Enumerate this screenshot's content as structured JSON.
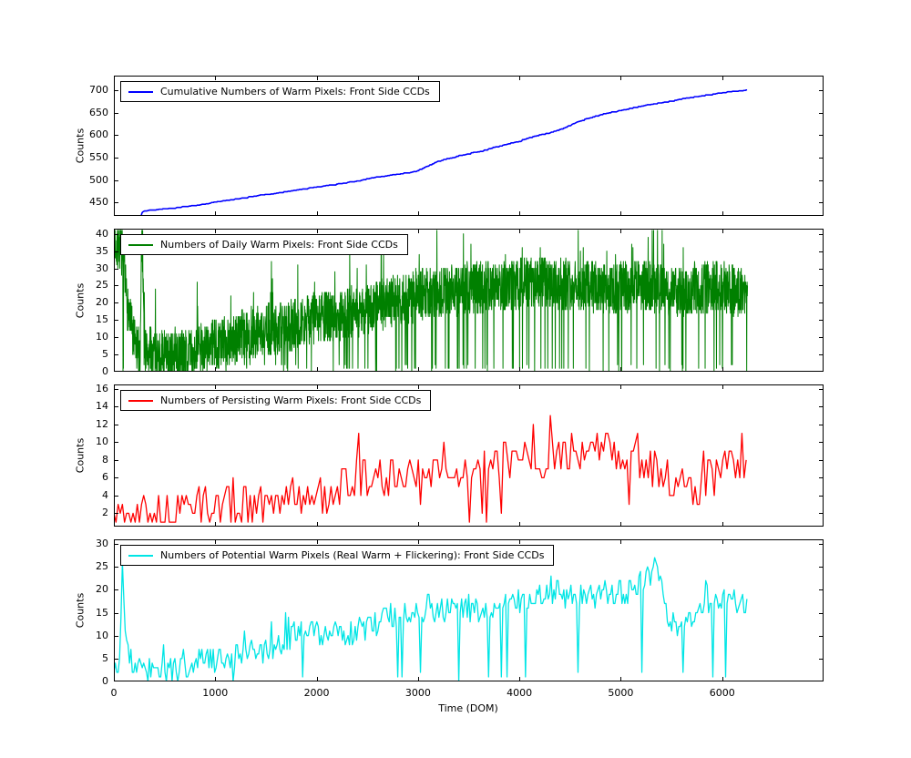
{
  "figure": {
    "background": "#ffffff",
    "xlabel": "Time (DOM)",
    "xlim": [
      0,
      7000
    ],
    "xticks": [
      0,
      1000,
      2000,
      3000,
      4000,
      5000,
      6000
    ]
  },
  "chart_data": [
    {
      "type": "line",
      "legend": "Cumulative Numbers of Warm Pixels: Front Side CCDs",
      "color": "#0000ff",
      "ylabel": "Counts",
      "ylim": [
        420,
        733
      ],
      "yticks": [
        450,
        500,
        550,
        600,
        650,
        700
      ],
      "xlim": [
        0,
        7000
      ],
      "x_range": [
        270,
        6250
      ],
      "x_step": 8,
      "linewidth": 1.6,
      "seed": 42,
      "noise_amp": 1.3,
      "dip_prob": 0,
      "spike_prob": 0,
      "monotonic": true,
      "clip": [
        421,
        701
      ],
      "trend": [
        [
          270,
          421
        ],
        [
          285,
          430
        ],
        [
          400,
          433
        ],
        [
          600,
          437
        ],
        [
          800,
          443
        ],
        [
          1000,
          450
        ],
        [
          1200,
          457
        ],
        [
          1400,
          464
        ],
        [
          1600,
          470
        ],
        [
          1800,
          477
        ],
        [
          2000,
          484
        ],
        [
          2200,
          490
        ],
        [
          2400,
          497
        ],
        [
          2600,
          506
        ],
        [
          2800,
          512
        ],
        [
          3000,
          520
        ],
        [
          3100,
          531
        ],
        [
          3200,
          542
        ],
        [
          3400,
          553
        ],
        [
          3600,
          563
        ],
        [
          3800,
          575
        ],
        [
          4000,
          586
        ],
        [
          4100,
          594
        ],
        [
          4200,
          600
        ],
        [
          4300,
          605
        ],
        [
          4400,
          612
        ],
        [
          4500,
          621
        ],
        [
          4600,
          632
        ],
        [
          4700,
          638
        ],
        [
          4800,
          645
        ],
        [
          5000,
          655
        ],
        [
          5200,
          664
        ],
        [
          5400,
          672
        ],
        [
          5600,
          680
        ],
        [
          5800,
          687
        ],
        [
          6000,
          694
        ],
        [
          6100,
          697
        ],
        [
          6250,
          700
        ]
      ]
    },
    {
      "type": "line",
      "legend": "Numbers of Daily Warm Pixels: Front Side CCDs",
      "color": "#008000",
      "ylabel": "Counts",
      "ylim": [
        0,
        41.5
      ],
      "yticks": [
        0,
        5,
        10,
        15,
        20,
        25,
        30,
        35,
        40
      ],
      "xlim": [
        0,
        7000
      ],
      "x_range": [
        0,
        6250
      ],
      "x_step": 2,
      "linewidth": 1,
      "seed": 7,
      "noise_amp": 7.5,
      "dip_prob": 0.035,
      "spike_prob": 0.02,
      "monotonic": false,
      "clip": [
        0,
        41
      ],
      "trend": [
        [
          0,
          38
        ],
        [
          70,
          37
        ],
        [
          120,
          22
        ],
        [
          200,
          8
        ],
        [
          260,
          5
        ],
        [
          275,
          41
        ],
        [
          290,
          28
        ],
        [
          310,
          6
        ],
        [
          500,
          4
        ],
        [
          700,
          5
        ],
        [
          900,
          7
        ],
        [
          1100,
          9
        ],
        [
          1300,
          11
        ],
        [
          1500,
          12
        ],
        [
          1700,
          13
        ],
        [
          1900,
          15
        ],
        [
          2100,
          16
        ],
        [
          2300,
          17
        ],
        [
          2500,
          18
        ],
        [
          2700,
          20
        ],
        [
          2900,
          21
        ],
        [
          3100,
          23
        ],
        [
          3300,
          23
        ],
        [
          3500,
          24
        ],
        [
          3700,
          25
        ],
        [
          3900,
          25
        ],
        [
          4100,
          26
        ],
        [
          4300,
          26
        ],
        [
          4500,
          25
        ],
        [
          4700,
          25
        ],
        [
          4900,
          24
        ],
        [
          5100,
          25
        ],
        [
          5300,
          25
        ],
        [
          5500,
          23
        ],
        [
          5700,
          24
        ],
        [
          5900,
          25
        ],
        [
          6100,
          24
        ],
        [
          6250,
          22
        ]
      ]
    },
    {
      "type": "line",
      "legend": "Numbers of Persisting Warm Pixels: Front Side CCDs",
      "color": "#ff0000",
      "ylabel": "Counts",
      "ylim": [
        0.5,
        16.5
      ],
      "yticks": [
        2,
        4,
        6,
        8,
        10,
        12,
        14,
        16
      ],
      "xlim": [
        0,
        7000
      ],
      "x_range": [
        0,
        6250
      ],
      "x_step": 21,
      "linewidth": 1.3,
      "seed": 13,
      "noise_amp": 2.1,
      "dip_prob": 0.05,
      "spike_prob": 0.05,
      "monotonic": false,
      "clip": [
        1,
        14
      ],
      "trend": [
        [
          0,
          2
        ],
        [
          400,
          2
        ],
        [
          800,
          3
        ],
        [
          1200,
          3
        ],
        [
          1600,
          3
        ],
        [
          1800,
          4
        ],
        [
          2000,
          4
        ],
        [
          2200,
          5
        ],
        [
          2400,
          6
        ],
        [
          2600,
          6
        ],
        [
          2800,
          6
        ],
        [
          3000,
          7
        ],
        [
          3200,
          6
        ],
        [
          3400,
          7
        ],
        [
          3600,
          7
        ],
        [
          3800,
          8
        ],
        [
          4000,
          8
        ],
        [
          4200,
          8
        ],
        [
          4400,
          8
        ],
        [
          4600,
          9
        ],
        [
          4700,
          11
        ],
        [
          4800,
          10
        ],
        [
          5000,
          8
        ],
        [
          5200,
          8
        ],
        [
          5400,
          6
        ],
        [
          5600,
          5
        ],
        [
          5800,
          5
        ],
        [
          6000,
          7
        ],
        [
          6100,
          8
        ],
        [
          6250,
          7
        ]
      ]
    },
    {
      "type": "line",
      "legend": "Numbers of Potential Warm Pixels (Real Warm + Flickering): Front Side CCDs",
      "color": "#00e5e5",
      "ylabel": "Counts",
      "ylim": [
        0,
        31
      ],
      "yticks": [
        0,
        5,
        10,
        15,
        20,
        25,
        30
      ],
      "xlim": [
        0,
        7000
      ],
      "x_range": [
        0,
        6250
      ],
      "x_step": 14,
      "linewidth": 1.3,
      "seed": 99,
      "noise_amp": 2.8,
      "dip_prob": 0.03,
      "spike_prob": 0.03,
      "monotonic": false,
      "clip": [
        0,
        29
      ],
      "trend": [
        [
          0,
          3
        ],
        [
          60,
          6
        ],
        [
          85,
          28
        ],
        [
          110,
          12
        ],
        [
          160,
          4
        ],
        [
          300,
          2
        ],
        [
          500,
          2
        ],
        [
          700,
          3
        ],
        [
          900,
          5
        ],
        [
          1100,
          5
        ],
        [
          1300,
          6
        ],
        [
          1500,
          7
        ],
        [
          1700,
          9
        ],
        [
          1800,
          11
        ],
        [
          1900,
          11
        ],
        [
          2100,
          10
        ],
        [
          2300,
          10
        ],
        [
          2500,
          12
        ],
        [
          2700,
          14
        ],
        [
          2900,
          15
        ],
        [
          3100,
          16
        ],
        [
          3300,
          15
        ],
        [
          3500,
          16
        ],
        [
          3700,
          15
        ],
        [
          3900,
          16
        ],
        [
          4100,
          19
        ],
        [
          4300,
          20
        ],
        [
          4500,
          18
        ],
        [
          4700,
          19
        ],
        [
          4900,
          19
        ],
        [
          5100,
          20
        ],
        [
          5300,
          24
        ],
        [
          5350,
          27
        ],
        [
          5400,
          20
        ],
        [
          5500,
          12
        ],
        [
          5600,
          13
        ],
        [
          5800,
          16
        ],
        [
          6000,
          17
        ],
        [
          6100,
          18
        ],
        [
          6250,
          16
        ]
      ]
    }
  ]
}
